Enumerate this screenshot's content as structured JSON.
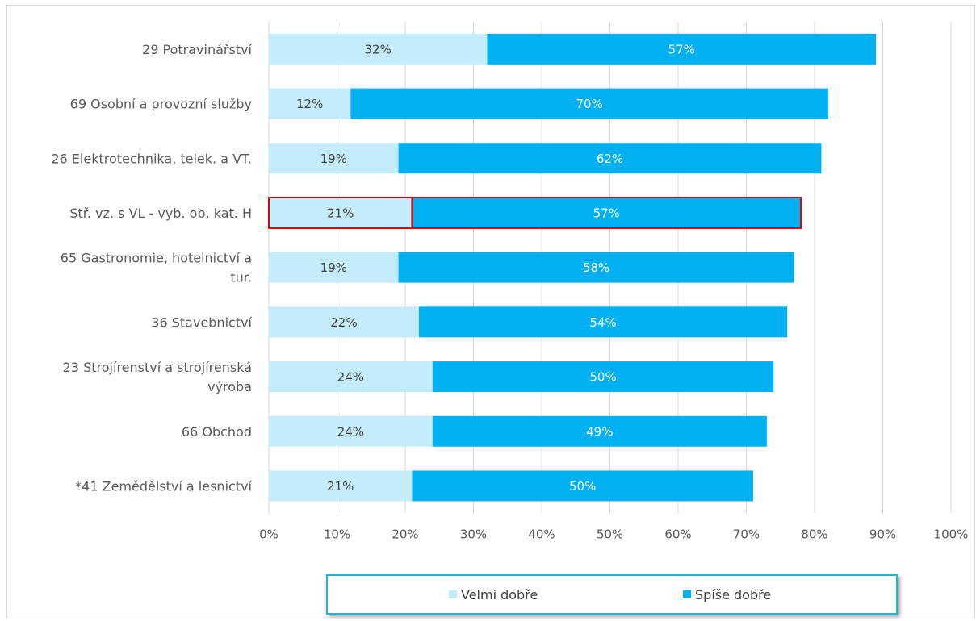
{
  "chart_data": {
    "type": "bar",
    "orientation": "horizontal",
    "stacked": true,
    "categories": [
      "29 Potravinářství",
      "69 Osobní a provozní služby",
      "26 Elektrotechnika, telek. a VT.",
      "Stř. vz. s VL - vyb. ob. kat. H",
      "65 Gastronomie, hotelnictví a tur.",
      "36 Stavebnictví",
      "23 Strojírenství a strojírenská výroba",
      "66 Obchod",
      "*41 Zemědělství a lesnictví"
    ],
    "category_lines": [
      [
        "29 Potravinářství"
      ],
      [
        "69 Osobní a provozní služby"
      ],
      [
        "26 Elektrotechnika, telek. a VT."
      ],
      [
        "Stř. vz. s VL - vyb. ob. kat. H"
      ],
      [
        "65 Gastronomie, hotelnictví a",
        "tur."
      ],
      [
        "36 Stavebnictví"
      ],
      [
        "23 Strojírenství a strojírenská",
        "výroba"
      ],
      [
        "66 Obchod"
      ],
      [
        "*41 Zemědělství a lesnictví"
      ]
    ],
    "series": [
      {
        "name": "Velmi dobře",
        "color": "#c5ecfb",
        "values": [
          32,
          12,
          19,
          21,
          19,
          22,
          24,
          24,
          21
        ],
        "labels": [
          "32%",
          "12%",
          "19%",
          "21%",
          "19%",
          "22%",
          "24%",
          "24%",
          "21%"
        ],
        "label_color": "#404040"
      },
      {
        "name": "Spíše dobře",
        "color": "#00b0f0",
        "values": [
          57,
          70,
          62,
          57,
          58,
          54,
          50,
          49,
          50
        ],
        "labels": [
          "57%",
          "70%",
          "62%",
          "57%",
          "58%",
          "54%",
          "50%",
          "49%",
          "50%"
        ],
        "label_color": "#ffffff"
      }
    ],
    "highlighted_category": "Stř. vz. s VL - vyb. ob. kat. H",
    "highlight_color": "#e00000",
    "xlim": [
      0,
      100
    ],
    "xticks": [
      "0%",
      "10%",
      "20%",
      "30%",
      "40%",
      "50%",
      "60%",
      "70%",
      "80%",
      "90%",
      "100%"
    ],
    "grid": true,
    "legend_position": "bottom"
  },
  "legend": {
    "items": [
      {
        "label": "Velmi dobře",
        "color": "#c5ecfb"
      },
      {
        "label": "Spíše dobře",
        "color": "#00b0f0"
      }
    ]
  }
}
